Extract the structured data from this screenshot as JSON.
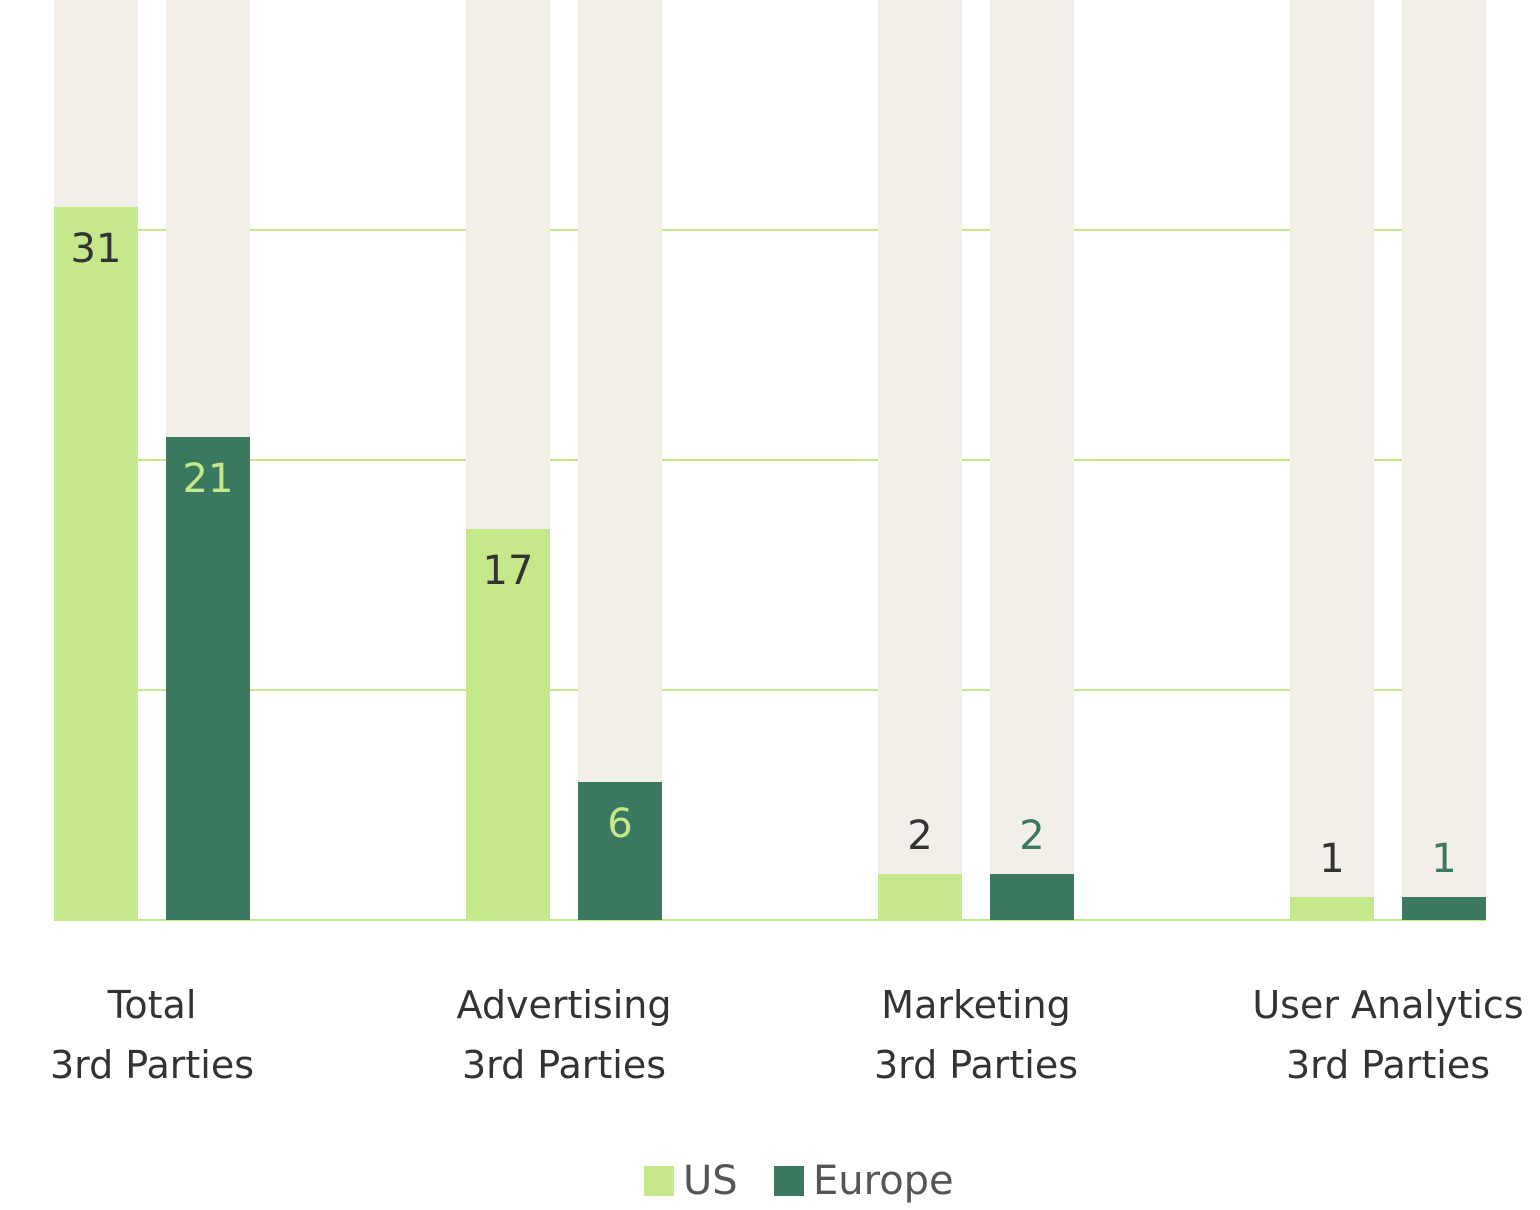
{
  "chart_data": {
    "type": "bar",
    "categories": [
      "Total\n3rd Parties",
      "Advertising\n3rd Parties",
      "Marketing\n3rd Parties",
      "User Analytics\n3rd Parties"
    ],
    "series": [
      {
        "name": "US",
        "color": "#c5e88a",
        "values": [
          31,
          17,
          2,
          1
        ]
      },
      {
        "name": "Europe",
        "color": "#3a7860",
        "values": [
          21,
          6,
          2,
          1
        ]
      }
    ],
    "ylim": [
      0,
      40
    ],
    "yticks": [
      0,
      10,
      20,
      30
    ],
    "grid": true,
    "track_color": "#f2efe9",
    "legend": "bottom"
  }
}
